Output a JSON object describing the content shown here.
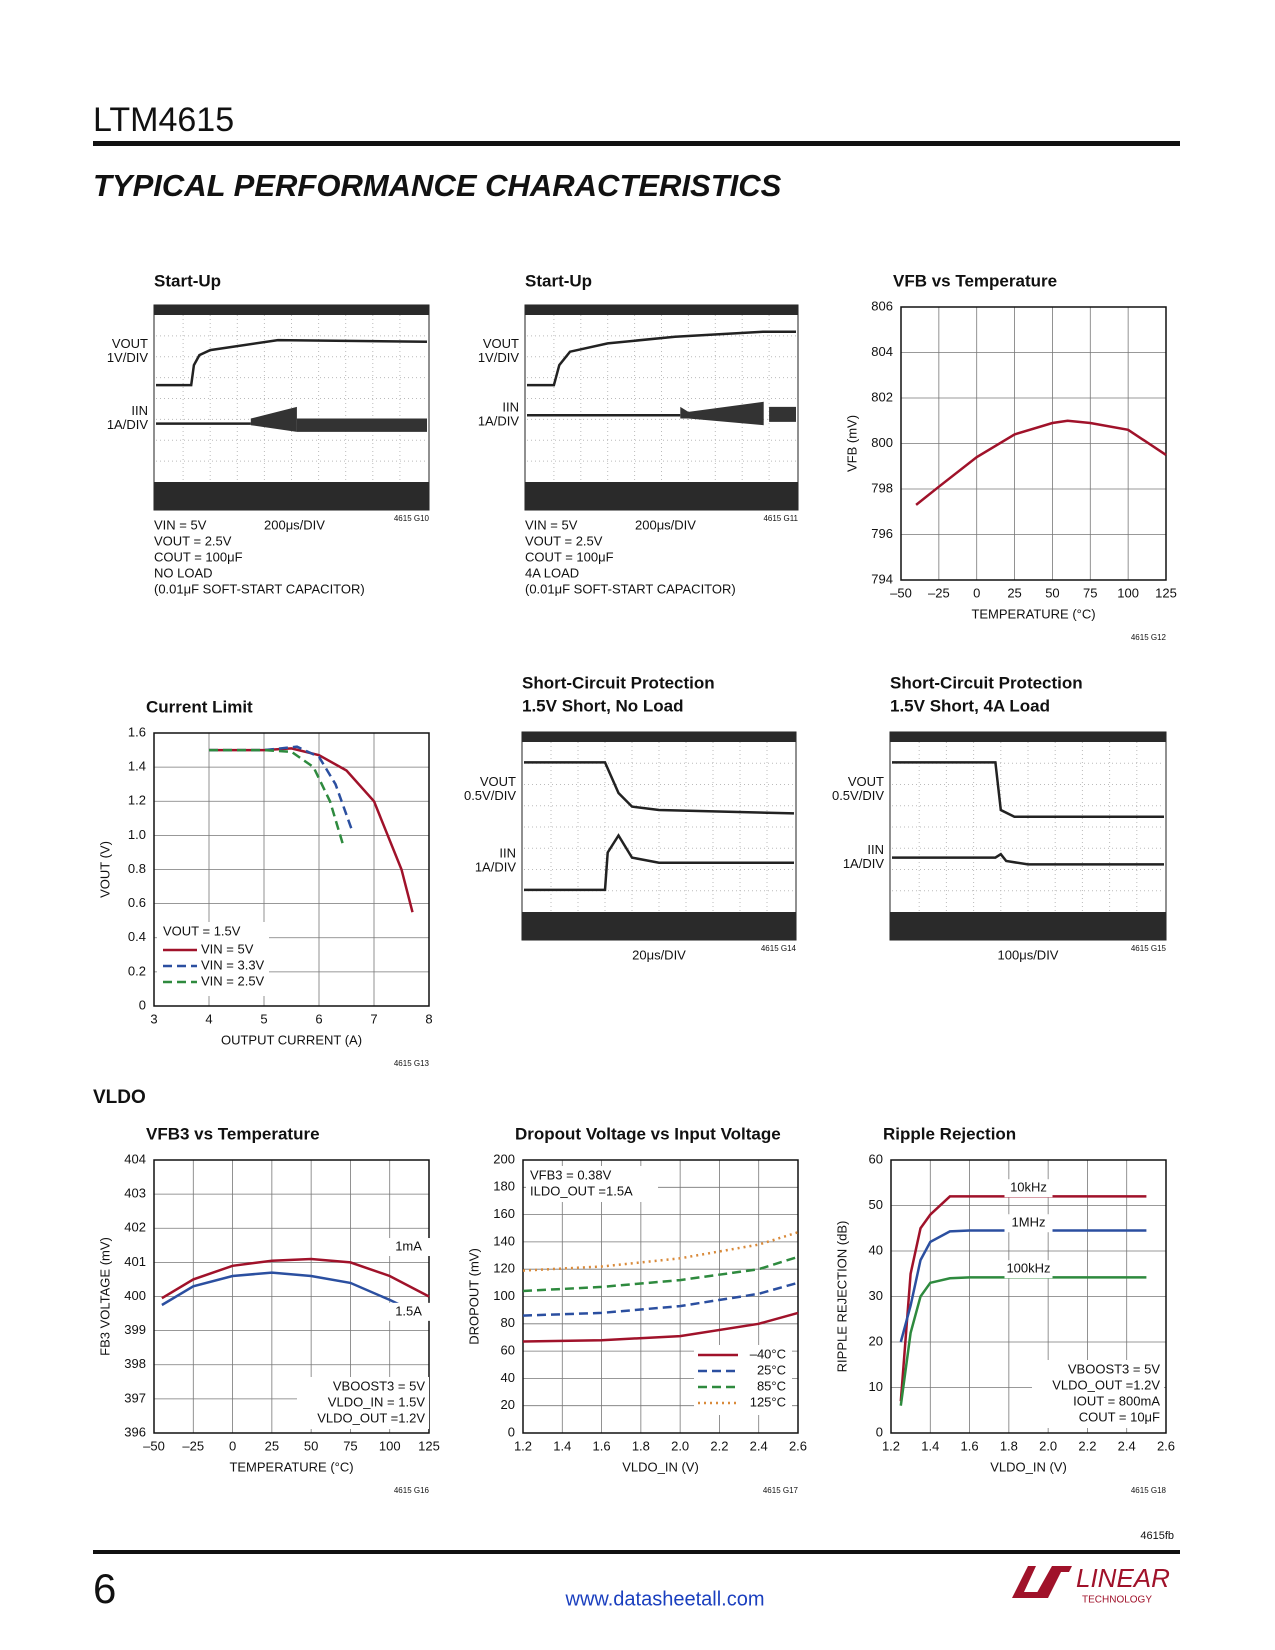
{
  "header": {
    "part": "LTM4615",
    "section": "TYPICAL PERFORMANCE CHARACTERISTICS"
  },
  "scopes": [
    {
      "title": "Start-Up",
      "ch1": [
        "VOUT",
        "1V/DIV"
      ],
      "ch2": [
        "IIN",
        "1A/DIV"
      ],
      "timebase": "200μs/DIV",
      "notes": [
        "VIN = 5V",
        "VOUT = 2.5V",
        "COUT = 100μF",
        "NO LOAD",
        "(0.01μF SOFT-START CAPACITOR)"
      ],
      "code": "4615 G10"
    },
    {
      "title": "Start-Up",
      "ch1": [
        "VOUT",
        "1V/DIV"
      ],
      "ch2": [
        "IIN",
        "1A/DIV"
      ],
      "timebase": "200μs/DIV",
      "notes": [
        "VIN = 5V",
        "VOUT = 2.5V",
        "COUT = 100μF",
        "4A LOAD",
        "(0.01μF SOFT-START CAPACITOR)"
      ],
      "code": "4615 G11"
    },
    {
      "title": [
        "Short-Circuit Protection",
        "1.5V Short, No Load"
      ],
      "ch1": [
        "VOUT",
        "0.5V/DIV"
      ],
      "ch2": [
        "IIN",
        "1A/DIV"
      ],
      "timebase": "20μs/DIV",
      "notes": [],
      "code": "4615 G14"
    },
    {
      "title": [
        "Short-Circuit Protection",
        "1.5V Short, 4A Load"
      ],
      "ch1": [
        "VOUT",
        "0.5V/DIV"
      ],
      "ch2": [
        "IIN",
        "1A/DIV"
      ],
      "timebase": "100μs/DIV",
      "notes": [],
      "code": "4615 G15"
    }
  ],
  "charts": [
    {
      "type": "line",
      "title": "VFB vs Temperature",
      "xlabel": "TEMPERATURE (°C)",
      "ylabel": "VFB (mV)",
      "code": "4615 G12",
      "grid": true,
      "xlim": [
        -50,
        125
      ],
      "xticks": [
        {
          "value": -50,
          "label": "–50"
        },
        {
          "value": -25,
          "label": "–25"
        },
        0,
        25,
        50,
        75,
        100,
        125
      ],
      "ylim": [
        794,
        806
      ],
      "yticks": [
        794,
        796,
        798,
        800,
        802,
        804,
        806
      ],
      "legend": "none",
      "notes": [],
      "series": [
        {
          "color": "#a0122a",
          "style": "solid",
          "x": [
            -40,
            -25,
            0,
            25,
            50,
            60,
            75,
            100,
            125
          ],
          "values": [
            797.3,
            798.1,
            799.4,
            800.4,
            800.9,
            801,
            800.9,
            800.6,
            799.5
          ]
        }
      ]
    },
    {
      "type": "line",
      "title": "Current Limit",
      "xlabel": "OUTPUT CURRENT (A)",
      "ylabel": "VOUT (V)",
      "code": "4615 G13",
      "grid": true,
      "xlim": [
        3,
        8
      ],
      "xticks": [
        3,
        4,
        5,
        6,
        7,
        8
      ],
      "ylim": [
        0,
        1.6
      ],
      "yticks": [
        0,
        0.2,
        0.4,
        0.6,
        0.8,
        {
          "value": 1,
          "label": "1.0"
        },
        1.2,
        1.4,
        1.6
      ],
      "legend": "lower left",
      "legend_title": "VOUT = 1.5V",
      "notes": [],
      "series": [
        {
          "name": "VIN = 5V",
          "color": "#a0122a",
          "style": "solid",
          "x": [
            4,
            5,
            5.5,
            6,
            6.5,
            7,
            7.5,
            7.7
          ],
          "values": [
            1.5,
            1.5,
            1.51,
            1.47,
            1.38,
            1.2,
            0.8,
            0.55
          ]
        },
        {
          "name": "VIN = 3.3V",
          "color": "#2b4fa0",
          "style": "dashed",
          "x": [
            4,
            5,
            5.6,
            6,
            6.3,
            6.6
          ],
          "values": [
            1.5,
            1.5,
            1.52,
            1.46,
            1.3,
            1.03
          ]
        },
        {
          "name": "VIN = 2.5V",
          "color": "#2e8a3e",
          "style": "dashed",
          "x": [
            4,
            5,
            5.5,
            5.9,
            6.2,
            6.45
          ],
          "values": [
            1.5,
            1.5,
            1.49,
            1.4,
            1.2,
            0.93
          ]
        }
      ]
    },
    {
      "type": "line",
      "title": "VFB3 vs Temperature",
      "xlabel": "TEMPERATURE (°C)",
      "ylabel": "FB3 VOLTAGE (mV)",
      "code": "4615 G16",
      "grid": true,
      "xlim": [
        -50,
        125
      ],
      "xticks": [
        {
          "value": -50,
          "label": "–50"
        },
        {
          "value": -25,
          "label": "–25"
        },
        0,
        25,
        50,
        75,
        100,
        125
      ],
      "ylim": [
        396,
        404
      ],
      "yticks": [
        396,
        397,
        398,
        399,
        400,
        401,
        402,
        403,
        404
      ],
      "legend": "inline",
      "notes": [
        "VBOOST3 = 5V",
        "VLDO_IN = 1.5V",
        "VLDO_OUT =1.2V"
      ],
      "series": [
        {
          "name": "1mA",
          "color": "#a0122a",
          "style": "solid",
          "x": [
            -45,
            -25,
            0,
            25,
            50,
            75,
            100,
            125
          ],
          "values": [
            399.95,
            400.5,
            400.9,
            401.05,
            401.1,
            401,
            400.6,
            400
          ]
        },
        {
          "name": "1.5A",
          "color": "#2b4fa0",
          "style": "solid",
          "x": [
            -45,
            -25,
            0,
            25,
            50,
            75,
            100,
            125
          ],
          "values": [
            399.75,
            400.3,
            400.6,
            400.7,
            400.6,
            400.4,
            399.9,
            399.35
          ]
        }
      ]
    },
    {
      "type": "line",
      "title": "Dropout Voltage vs Input Voltage",
      "xlabel": "VLDO_IN (V)",
      "ylabel": "DROPOUT (mV)",
      "code": "4615 G17",
      "grid": true,
      "xlim": [
        1.2,
        2.6
      ],
      "xticks": [
        1.2,
        1.4,
        1.6,
        1.8,
        {
          "value": 2,
          "label": "2.0"
        },
        2.2,
        2.4,
        2.6
      ],
      "ylim": [
        0,
        200
      ],
      "yticks": [
        0,
        20,
        40,
        60,
        80,
        100,
        120,
        140,
        160,
        180,
        200
      ],
      "legend": "lower right",
      "notes": [
        "VFB3 = 0.38V",
        "ILDO_OUT =1.5A"
      ],
      "series": [
        {
          "name": "–40°C",
          "color": "#a0122a",
          "style": "solid",
          "x": [
            1.2,
            1.6,
            2.0,
            2.4,
            2.6
          ],
          "values": [
            67,
            68,
            71,
            80,
            88
          ]
        },
        {
          "name": "25°C",
          "color": "#2b4fa0",
          "style": "dashed",
          "x": [
            1.2,
            1.6,
            2.0,
            2.4,
            2.6
          ],
          "values": [
            86,
            88,
            93,
            102,
            110
          ]
        },
        {
          "name": "85°C",
          "color": "#2e8a3e",
          "style": "dashed",
          "x": [
            1.2,
            1.6,
            2.0,
            2.4,
            2.6
          ],
          "values": [
            104,
            107,
            112,
            120,
            129
          ]
        },
        {
          "name": "125°C",
          "color": "#d98a3a",
          "style": "dotted",
          "x": [
            1.2,
            1.6,
            2.0,
            2.4,
            2.6
          ],
          "values": [
            119,
            122,
            128,
            138,
            147
          ]
        }
      ]
    },
    {
      "type": "line",
      "title": "Ripple Rejection",
      "xlabel": "VLDO_IN (V)",
      "ylabel": "RIPPLE REJECTION (dB)",
      "code": "4615 G18",
      "grid": true,
      "xlim": [
        1.2,
        2.6
      ],
      "xticks": [
        1.2,
        1.4,
        1.6,
        1.8,
        {
          "value": 2,
          "label": "2.0"
        },
        2.2,
        2.4,
        2.6
      ],
      "ylim": [
        0,
        60
      ],
      "yticks": [
        0,
        10,
        20,
        30,
        40,
        50,
        60
      ],
      "legend": "inline",
      "notes": [
        "VBOOST3 = 5V",
        "VLDO_OUT =1.2V",
        "IOUT = 800mA",
        "COUT = 10μF"
      ],
      "series": [
        {
          "name": "10kHz",
          "color": "#a0122a",
          "style": "solid",
          "x": [
            1.25,
            1.3,
            1.35,
            1.4,
            1.5,
            1.6,
            2,
            2.5
          ],
          "values": [
            7,
            35,
            45,
            48,
            52,
            52,
            52,
            52
          ]
        },
        {
          "name": "1MHz",
          "color": "#2b4fa0",
          "style": "solid",
          "x": [
            1.25,
            1.3,
            1.35,
            1.4,
            1.5,
            1.6,
            2,
            2.5
          ],
          "values": [
            20,
            28,
            38,
            42,
            44.3,
            44.5,
            44.5,
            44.5
          ]
        },
        {
          "name": "100kHz",
          "color": "#2e8a3e",
          "style": "solid",
          "x": [
            1.25,
            1.3,
            1.35,
            1.4,
            1.5,
            1.6,
            2,
            2.5
          ],
          "values": [
            6,
            22,
            30,
            33,
            34,
            34.2,
            34.2,
            34.2
          ]
        }
      ]
    }
  ],
  "vldo_heading": "VLDO",
  "footer": {
    "revision": "4615fb",
    "page": "6",
    "url": "www.datasheetall.com",
    "logo": "LINEAR",
    "logo_sub": "TECHNOLOGY"
  }
}
